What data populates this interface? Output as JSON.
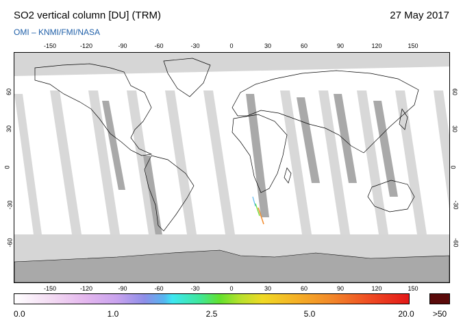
{
  "header": {
    "title": "SO2 vertical column [DU] (TRM)",
    "date": "27 May 2017",
    "subtitle": "OMI  –  KNMI/FMI/NASA"
  },
  "map": {
    "projection": "equirectangular",
    "lon_ticks": [
      "-150",
      "-120",
      "-90",
      "-60",
      "-30",
      "0",
      "30",
      "60",
      "90",
      "120",
      "150"
    ],
    "lat_ticks": [
      "60",
      "30",
      "0",
      "-30",
      "-60"
    ],
    "colors": {
      "ocean": "#ffffff",
      "no_data": "#d6d6d6",
      "darker_swath": "#a9a9a9",
      "coastline": "#000000"
    }
  },
  "colorbar": {
    "labels": [
      "0.0",
      "1.0",
      "2.5",
      "5.0",
      "20.0"
    ],
    "overflow_label": ">50",
    "overflow_color": "#5a0a0a"
  }
}
